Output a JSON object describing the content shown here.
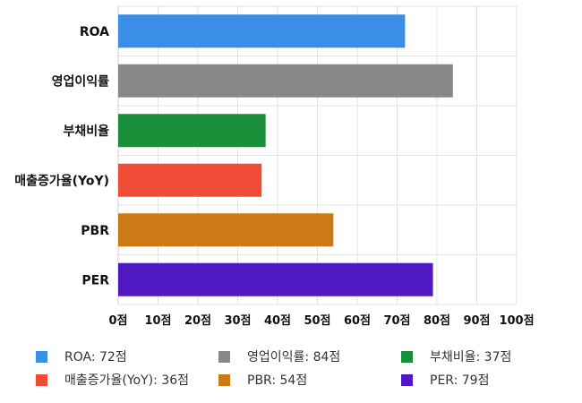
{
  "chart_data": {
    "type": "bar",
    "orientation": "horizontal",
    "categories": [
      "ROA",
      "영업이익률",
      "부채비율",
      "매출증가율(YoY)",
      "PBR",
      "PER"
    ],
    "values": [
      72,
      84,
      37,
      36,
      54,
      79
    ],
    "colors": [
      "#3a8ee6",
      "#888888",
      "#1a8f3a",
      "#ef4d38",
      "#cc7a16",
      "#4f18c0"
    ],
    "xlim": [
      0,
      100
    ],
    "x_ticks": [
      "0점",
      "10점",
      "20점",
      "30점",
      "40점",
      "50점",
      "60점",
      "70점",
      "80점",
      "90점",
      "100점"
    ],
    "grid": true,
    "legend_position": "bottom",
    "legend": [
      {
        "label": "ROA: 72점",
        "color": "#3a8ee6"
      },
      {
        "label": "영업이익률: 84점",
        "color": "#888888"
      },
      {
        "label": "부채비율: 37점",
        "color": "#1a8f3a"
      },
      {
        "label": "매출증가율(YoY): 36점",
        "color": "#ef4d38"
      },
      {
        "label": "PBR: 54점",
        "color": "#cc7a16"
      },
      {
        "label": "PER: 79점",
        "color": "#4f18c0"
      }
    ]
  }
}
